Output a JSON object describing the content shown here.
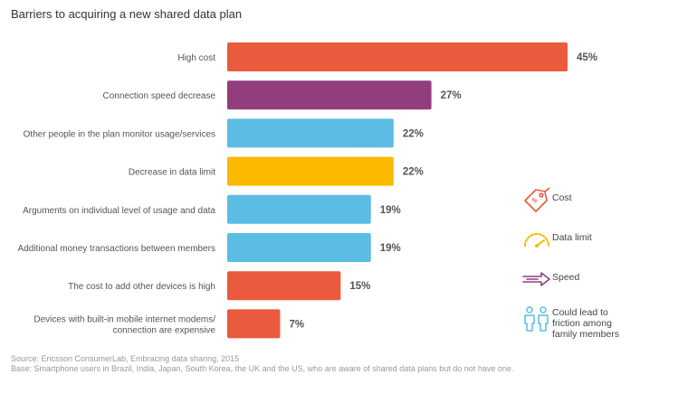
{
  "chart_data": {
    "type": "bar",
    "orientation": "horizontal",
    "title": "Barriers to acquiring a new shared data plan",
    "categories": [
      "High cost",
      "Connection speed decrease",
      "Other people in the plan monitor usage/services",
      "Decrease in data limit",
      "Arguments on individual level of usage and data",
      "Additional money transactions between members",
      "The cost to add other devices is high",
      "Devices with built-in mobile internet modems/ connection are expensive"
    ],
    "values": [
      45,
      27,
      22,
      22,
      19,
      19,
      15,
      7
    ],
    "value_labels": [
      "45%",
      "27%",
      "22%",
      "22%",
      "19%",
      "19%",
      "15%",
      "7%"
    ],
    "bar_groups": [
      "Cost",
      "Speed",
      "Could lead to friction among family members",
      "Data limit",
      "Could lead to friction among family members",
      "Could lead to friction among family members",
      "Cost",
      "Cost"
    ],
    "xlim": [
      0,
      45
    ],
    "grid": false,
    "legend": {
      "placement": "right",
      "entries": [
        {
          "label": "Cost",
          "icon": "price-tag-icon",
          "color": "#ea5a3c"
        },
        {
          "label": "Data limit",
          "icon": "gauge-icon",
          "color": "#fbb900"
        },
        {
          "label": "Speed",
          "icon": "speed-arrow-icon",
          "color": "#923e7e"
        },
        {
          "label": "Could lead to friction among family members",
          "icon": "family-icon",
          "color": "#5bbce4"
        }
      ]
    }
  },
  "colors": {
    "Cost": "#ea5a3c",
    "Data limit": "#fbb900",
    "Speed": "#923e7e",
    "Could lead to friction among family members": "#5bbce4"
  },
  "footer": {
    "source": "Source: Ericsson ConsumerLab, Embracing data sharing, 2015",
    "base": "Base: Smartphone users in Brazil, India, Japan, South Korea, the UK and the US, who are aware of shared data plans but do not have one."
  }
}
